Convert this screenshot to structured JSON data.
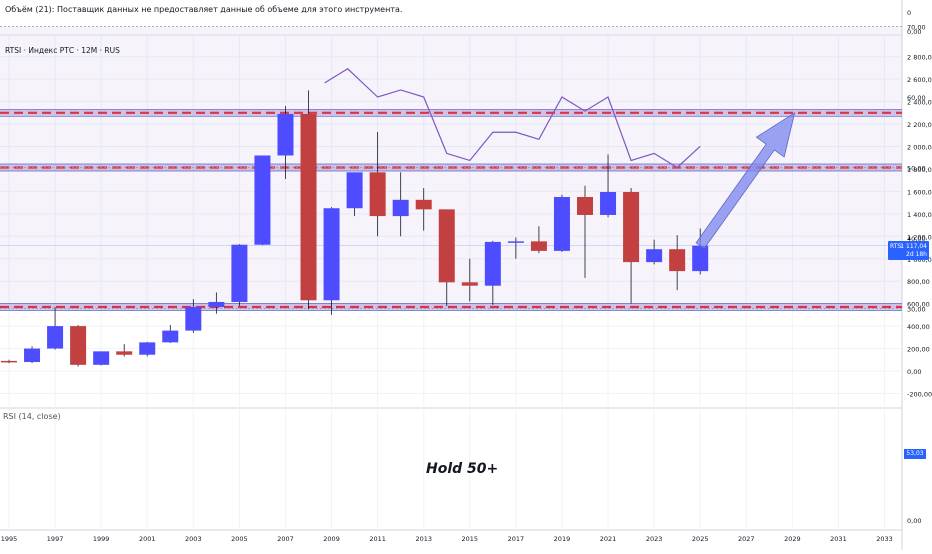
{
  "header": {
    "volume_note": "Объём (21): Поставщик данных не предоставляет данные об объеме для этого инструмента.",
    "symbol_title": "RTSI · Индекс РТС · 12M · RUS"
  },
  "rsi_panel": {
    "label": "RSI (14, close)",
    "annotation": "Hold 50+",
    "last_value_badge": "53,03"
  },
  "price_badge": {
    "symbol": "RTSI",
    "value": "1 117,04",
    "countdown": "2d 18h"
  },
  "volume_axis_ticks": [
    "0",
    "0,00"
  ],
  "price_axis_ticks": [
    "2 800,00",
    "2 600,00",
    "2 400,00",
    "2 200,00",
    "2 000,00",
    "1 800,00",
    "1 600,00",
    "1 400,00",
    "1 200,00",
    "1 000,00",
    "800,00",
    "600,00",
    "400,00",
    "200,00",
    "0,00",
    "-200,00"
  ],
  "rsi_axis_ticks": [
    "70,00",
    "60,00",
    "50,00",
    "40,00",
    "30,00",
    "0,00"
  ],
  "colors": {
    "up": "#4d4dff",
    "down": "#c24040",
    "resistance_line": "#e0333d",
    "rsi_line": "#7e57c2",
    "arrow": "#7b86f0",
    "badge": "#2962ff"
  },
  "chart_data": [
    {
      "type": "candlestick",
      "interval": "12M",
      "x_ticks": [
        "1995",
        "1997",
        "1999",
        "2001",
        "2003",
        "2005",
        "2007",
        "2009",
        "2011",
        "2013",
        "2015",
        "2017",
        "2019",
        "2021",
        "2023",
        "2025",
        "2027",
        "2029",
        "2031",
        "2033"
      ],
      "ylim": [
        -300,
        3000
      ],
      "candles": [
        {
          "year": 1995,
          "open": 90,
          "high": 100,
          "low": 70,
          "close": 80
        },
        {
          "year": 1996,
          "open": 80,
          "high": 220,
          "low": 70,
          "close": 200
        },
        {
          "year": 1997,
          "open": 200,
          "high": 570,
          "low": 190,
          "close": 400
        },
        {
          "year": 1998,
          "open": 400,
          "high": 410,
          "low": 40,
          "close": 55
        },
        {
          "year": 1999,
          "open": 55,
          "high": 175,
          "low": 50,
          "close": 175
        },
        {
          "year": 2000,
          "open": 175,
          "high": 240,
          "low": 130,
          "close": 145
        },
        {
          "year": 2001,
          "open": 145,
          "high": 260,
          "low": 130,
          "close": 255
        },
        {
          "year": 2002,
          "open": 255,
          "high": 410,
          "low": 250,
          "close": 360
        },
        {
          "year": 2003,
          "open": 360,
          "high": 640,
          "low": 340,
          "close": 570
        },
        {
          "year": 2004,
          "open": 570,
          "high": 700,
          "low": 510,
          "close": 615
        },
        {
          "year": 2005,
          "open": 615,
          "high": 1130,
          "low": 580,
          "close": 1125
        },
        {
          "year": 2006,
          "open": 1125,
          "high": 1920,
          "low": 1120,
          "close": 1920
        },
        {
          "year": 2007,
          "open": 1920,
          "high": 2360,
          "low": 1710,
          "close": 2290
        },
        {
          "year": 2008,
          "open": 2290,
          "high": 2500,
          "low": 550,
          "close": 630
        },
        {
          "year": 2009,
          "open": 630,
          "high": 1460,
          "low": 500,
          "close": 1450
        },
        {
          "year": 2010,
          "open": 1450,
          "high": 1770,
          "low": 1380,
          "close": 1770
        },
        {
          "year": 2011,
          "open": 1770,
          "high": 2130,
          "low": 1200,
          "close": 1380
        },
        {
          "year": 2012,
          "open": 1380,
          "high": 1770,
          "low": 1200,
          "close": 1525
        },
        {
          "year": 2013,
          "open": 1525,
          "high": 1630,
          "low": 1250,
          "close": 1440
        },
        {
          "year": 2014,
          "open": 1440,
          "high": 1440,
          "low": 580,
          "close": 790
        },
        {
          "year": 2015,
          "open": 790,
          "high": 1000,
          "low": 620,
          "close": 760
        },
        {
          "year": 2016,
          "open": 760,
          "high": 1160,
          "low": 590,
          "close": 1150
        },
        {
          "year": 2017,
          "open": 1150,
          "high": 1190,
          "low": 1000,
          "close": 1155
        },
        {
          "year": 2018,
          "open": 1155,
          "high": 1290,
          "low": 1050,
          "close": 1070
        },
        {
          "year": 2019,
          "open": 1070,
          "high": 1570,
          "low": 1060,
          "close": 1550
        },
        {
          "year": 2020,
          "open": 1550,
          "high": 1650,
          "low": 830,
          "close": 1390
        },
        {
          "year": 2021,
          "open": 1390,
          "high": 1930,
          "low": 1370,
          "close": 1595
        },
        {
          "year": 2022,
          "open": 1595,
          "high": 1630,
          "low": 600,
          "close": 970
        },
        {
          "year": 2023,
          "open": 970,
          "high": 1170,
          "low": 950,
          "close": 1085
        },
        {
          "year": 2024,
          "open": 1085,
          "high": 1210,
          "low": 720,
          "close": 890
        },
        {
          "year": 2025,
          "open": 890,
          "high": 1270,
          "low": 860,
          "close": 1117
        }
      ],
      "horizontal_levels": [
        2300,
        570
      ]
    },
    {
      "type": "line",
      "ylim": [
        0,
        80
      ],
      "levels": [
        70,
        50,
        30
      ],
      "points": [
        {
          "year": 2008.7,
          "value": 62
        },
        {
          "year": 2009.7,
          "value": 64
        },
        {
          "year": 2011,
          "value": 60
        },
        {
          "year": 2012,
          "value": 61
        },
        {
          "year": 2013,
          "value": 60
        },
        {
          "year": 2014,
          "value": 52
        },
        {
          "year": 2015,
          "value": 51
        },
        {
          "year": 2016,
          "value": 55
        },
        {
          "year": 2017,
          "value": 55
        },
        {
          "year": 2018,
          "value": 54
        },
        {
          "year": 2019,
          "value": 60
        },
        {
          "year": 2020,
          "value": 58
        },
        {
          "year": 2021,
          "value": 60
        },
        {
          "year": 2022,
          "value": 51
        },
        {
          "year": 2023,
          "value": 52
        },
        {
          "year": 2024,
          "value": 50
        },
        {
          "year": 2025,
          "value": 53
        }
      ]
    }
  ]
}
